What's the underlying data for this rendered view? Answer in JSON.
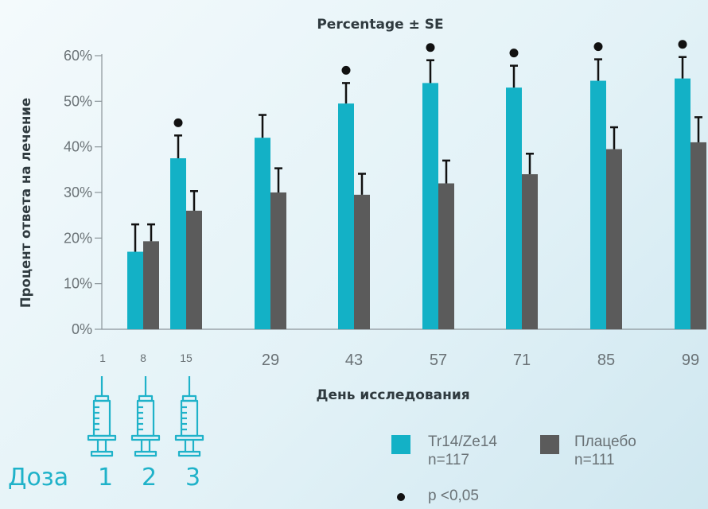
{
  "chart_data": {
    "type": "bar",
    "title": "Percentage ± SE",
    "xlabel": "День исследования",
    "ylabel": "Процент ответа на лечение",
    "ylim": [
      0,
      60
    ],
    "yticks": [
      "0%",
      "10%",
      "20%",
      "30%",
      "40%",
      "50%",
      "60%"
    ],
    "categories": [
      "1",
      "8",
      "15",
      "29",
      "43",
      "57",
      "71",
      "85",
      "99"
    ],
    "series": [
      {
        "name": "Tr14/Ze14",
        "n_label": "n=117",
        "color": "#13b1c6",
        "values": [
          null,
          17,
          37.5,
          42,
          49.5,
          54,
          53,
          54.5,
          55
        ],
        "se": [
          null,
          6,
          5,
          5,
          4.5,
          5,
          4.8,
          4.7,
          4.7
        ]
      },
      {
        "name": "Плацебо",
        "n_label": "n=111",
        "color": "#5b5b5b",
        "values": [
          null,
          19.3,
          26,
          30,
          29.5,
          32,
          34,
          39.5,
          41
        ],
        "se": [
          null,
          3.7,
          4.3,
          5.3,
          4.6,
          5,
          4.5,
          4.8,
          5.5
        ]
      }
    ],
    "significant": [
      false,
      false,
      true,
      false,
      true,
      true,
      true,
      true,
      true
    ],
    "significance_label": "p <0,05"
  },
  "dose": {
    "label": "Доза",
    "numbers": [
      "1",
      "2",
      "3"
    ],
    "color": "#1fb2c9"
  }
}
